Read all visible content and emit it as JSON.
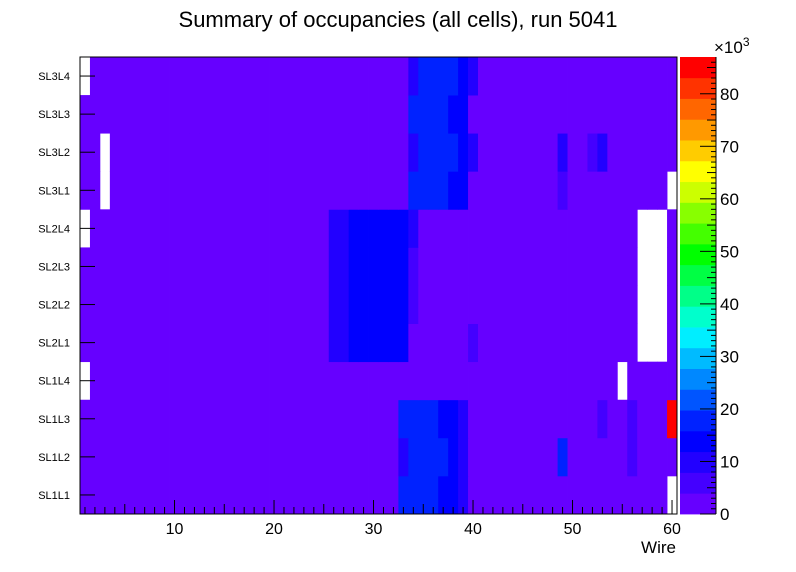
{
  "chart_data": {
    "type": "heatmap",
    "title": "Summary of occupancies (all cells),      run 5041",
    "xlabel": "Wire",
    "ylabel": "",
    "xlim": [
      0.5,
      60.5
    ],
    "x_ticks": [
      "10",
      "20",
      "30",
      "40",
      "50",
      "60"
    ],
    "x_tick_values": [
      10,
      20,
      30,
      40,
      50,
      60
    ],
    "categories": [
      "SL1L1",
      "SL1L2",
      "SL1L3",
      "SL1L4",
      "SL2L1",
      "SL2L2",
      "SL2L3",
      "SL2L4",
      "SL3L1",
      "SL3L2",
      "SL3L3",
      "SL3L4"
    ],
    "zlim": [
      0,
      87000
    ],
    "z_exponent_label": "×10",
    "z_exponent_power": "3",
    "z_ticks": [
      "0",
      "10",
      "20",
      "30",
      "40",
      "50",
      "60",
      "70",
      "80"
    ],
    "z_tick_values": [
      0,
      10000,
      20000,
      30000,
      40000,
      50000,
      60000,
      70000,
      80000
    ],
    "palette_colors": [
      "#6600ff",
      "#4400ff",
      "#2200ff",
      "#0000ff",
      "#0022ff",
      "#0055ff",
      "#0088ff",
      "#00bbff",
      "#00eeff",
      "#00ffcc",
      "#00ff88",
      "#00ff44",
      "#00ff00",
      "#44ff00",
      "#88ff00",
      "#ccff00",
      "#ffff00",
      "#ffcc00",
      "#ff9900",
      "#ff6600",
      "#ff3300",
      "#ff0000"
    ],
    "rows": [
      {
        "layer": "SL1L1",
        "base": 3000,
        "empty_wires": [
          60
        ],
        "ranges": [
          [
            33,
            36,
            17000
          ],
          [
            37,
            38,
            12000
          ],
          [
            39,
            39,
            8000
          ]
        ]
      },
      {
        "layer": "SL1L2",
        "base": 3000,
        "empty_wires": [],
        "ranges": [
          [
            33,
            33,
            8000
          ],
          [
            34,
            37,
            17000
          ],
          [
            38,
            38,
            12000
          ],
          [
            39,
            39,
            8000
          ],
          [
            49,
            49,
            17000
          ],
          [
            56,
            56,
            5000
          ]
        ]
      },
      {
        "layer": "SL1L3",
        "base": 3000,
        "empty_wires": [],
        "ranges": [
          [
            33,
            36,
            17000
          ],
          [
            37,
            38,
            12000
          ],
          [
            39,
            39,
            8000
          ],
          [
            53,
            53,
            5000
          ],
          [
            56,
            56,
            5000
          ],
          [
            60,
            60,
            85000
          ]
        ]
      },
      {
        "layer": "SL1L4",
        "base": 3000,
        "empty_wires": [
          1,
          55
        ],
        "ranges": []
      },
      {
        "layer": "SL2L1",
        "base": 3000,
        "empty_wires": [
          57,
          58,
          59
        ],
        "ranges": [
          [
            26,
            27,
            8000
          ],
          [
            28,
            33,
            12000
          ],
          [
            40,
            40,
            5000
          ]
        ]
      },
      {
        "layer": "SL2L2",
        "base": 3000,
        "empty_wires": [
          57,
          58,
          59
        ],
        "ranges": [
          [
            26,
            27,
            8000
          ],
          [
            28,
            33,
            12000
          ],
          [
            34,
            34,
            5000
          ]
        ]
      },
      {
        "layer": "SL2L3",
        "base": 3000,
        "empty_wires": [
          57,
          58,
          59
        ],
        "ranges": [
          [
            26,
            27,
            8000
          ],
          [
            28,
            33,
            12000
          ],
          [
            34,
            34,
            5000
          ]
        ]
      },
      {
        "layer": "SL2L4",
        "base": 3000,
        "empty_wires": [
          1,
          57,
          58,
          59
        ],
        "ranges": [
          [
            26,
            27,
            8000
          ],
          [
            28,
            33,
            12000
          ],
          [
            34,
            34,
            8000
          ]
        ]
      },
      {
        "layer": "SL3L1",
        "base": 3000,
        "empty_wires": [
          3,
          60
        ],
        "ranges": [
          [
            34,
            37,
            17000
          ],
          [
            38,
            39,
            12000
          ],
          [
            49,
            49,
            5000
          ]
        ]
      },
      {
        "layer": "SL3L2",
        "base": 3000,
        "empty_wires": [
          3
        ],
        "ranges": [
          [
            34,
            34,
            8000
          ],
          [
            35,
            38,
            17000
          ],
          [
            39,
            39,
            12000
          ],
          [
            40,
            40,
            8000
          ],
          [
            49,
            49,
            8000
          ],
          [
            52,
            52,
            5000
          ],
          [
            53,
            53,
            8000
          ]
        ]
      },
      {
        "layer": "SL3L3",
        "base": 3000,
        "empty_wires": [],
        "ranges": [
          [
            34,
            37,
            17000
          ],
          [
            38,
            39,
            12000
          ]
        ]
      },
      {
        "layer": "SL3L4",
        "base": 3000,
        "empty_wires": [
          1
        ],
        "ranges": [
          [
            34,
            34,
            8000
          ],
          [
            35,
            38,
            17000
          ],
          [
            39,
            39,
            12000
          ],
          [
            40,
            40,
            8000
          ]
        ]
      }
    ]
  }
}
